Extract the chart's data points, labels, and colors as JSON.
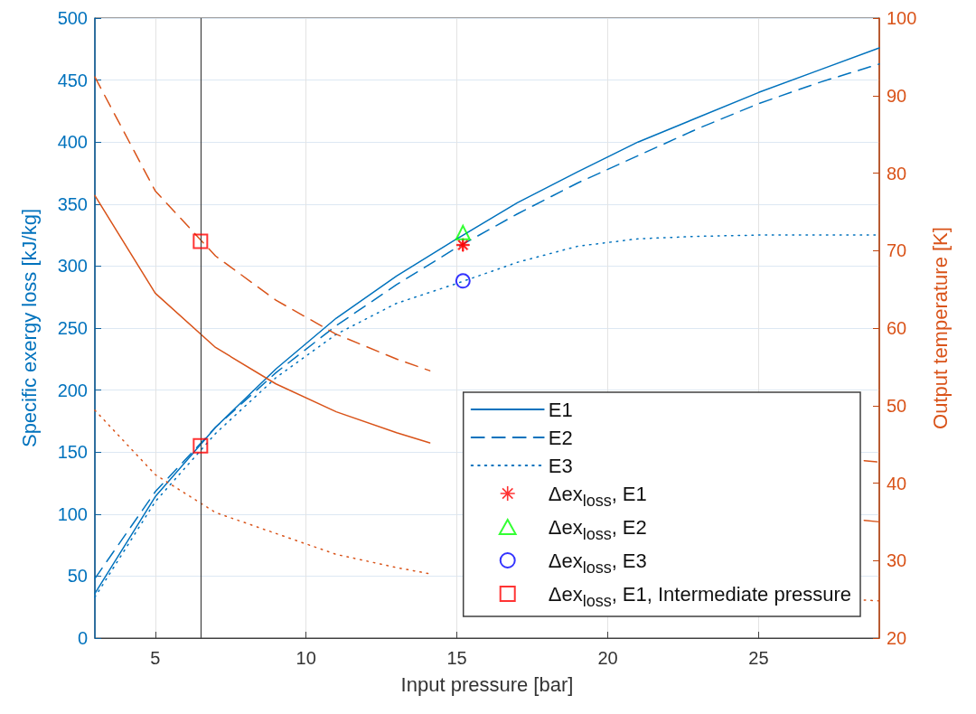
{
  "chart_data": {
    "type": "line",
    "xlabel": "Input pressure [bar]",
    "ylabel": "Specific exergy loss [kJ/kg]",
    "y2label": "Output temperature [K]",
    "x": [
      3,
      5,
      7,
      9,
      11,
      13,
      15,
      17,
      19,
      21,
      23,
      25,
      27,
      29
    ],
    "xlim": [
      3,
      29
    ],
    "xticks": [
      5,
      10,
      15,
      20,
      25
    ],
    "ylim": [
      0,
      500
    ],
    "yticks": [
      0,
      50,
      100,
      150,
      200,
      250,
      300,
      350,
      400,
      450,
      500
    ],
    "y2lim": [
      20,
      100
    ],
    "y2ticks": [
      20,
      30,
      40,
      50,
      60,
      70,
      80,
      90,
      100
    ],
    "grid": true,
    "legend": "bottom right",
    "marker": "none",
    "ref_lines": [
      {
        "axis": "x",
        "value": 6.5,
        "color": "#404040"
      }
    ],
    "series": [
      {
        "name": "E1",
        "color": "#0072bd",
        "line_style": "solid",
        "values": [
          36,
          114,
          170,
          217,
          258,
          292,
          322,
          351,
          376,
          400,
          420,
          440,
          458,
          476
        ]
      },
      {
        "name": "E2",
        "color": "#0072bd",
        "line_style": "dashed",
        "values": [
          48,
          118,
          170,
          214,
          252,
          285,
          315,
          342,
          367,
          389,
          411,
          431,
          448,
          463
        ]
      },
      {
        "name": "E3",
        "color": "#0072bd",
        "line_style": "dotted",
        "values": [
          33,
          110,
          165,
          210,
          245,
          270,
          286,
          303,
          316,
          322,
          324,
          325,
          325,
          325
        ]
      },
      {
        "color": "#d95319",
        "line_style": "solid",
        "axis": "y2",
        "x": [
          3,
          5,
          7,
          9,
          11,
          13,
          14.1,
          21,
          28.5,
          29
        ],
        "values": [
          77.1,
          64.5,
          57.5,
          52.8,
          49.2,
          46.5,
          45.2,
          null,
          35.2,
          35.0
        ]
      },
      {
        "color": "#d95319",
        "line_style": "dashed",
        "axis": "y2",
        "x": [
          3,
          5,
          7,
          9,
          11,
          13,
          14.1,
          21,
          28.5,
          29
        ],
        "values": [
          92.4,
          77.7,
          69.3,
          63.6,
          59.2,
          56.0,
          54.5,
          null,
          42.9,
          42.7
        ]
      },
      {
        "color": "#d95319",
        "line_style": "dotted",
        "axis": "y2",
        "x": [
          3,
          5,
          7,
          9,
          11,
          13,
          14.1,
          21,
          28.5,
          29
        ],
        "values": [
          49.4,
          41.1,
          36.2,
          33.5,
          30.8,
          29.1,
          28.3,
          null,
          24.9,
          24.8
        ]
      },
      {
        "name": "Δex$_{loss}$, E1",
        "type": "scatter",
        "marker": "star",
        "color": "#ff0000",
        "x": [
          15.2
        ],
        "values": [
          317
        ]
      },
      {
        "name": "Δex$_{loss}$, E2",
        "type": "scatter",
        "marker": "triangle",
        "color": "#00ff00",
        "x": [
          15.2
        ],
        "values": [
          327
        ]
      },
      {
        "name": "Δex$_{loss}$, E3",
        "type": "scatter",
        "marker": "circle",
        "color": "#0000ff",
        "x": [
          15.2
        ],
        "values": [
          288
        ]
      },
      {
        "name": "Δex$_{loss}$, E1, Intermediate pressure",
        "type": "scatter",
        "marker": "square",
        "color": "#ff0000",
        "x": [
          6.5,
          6.5
        ],
        "values": [
          155,
          320
        ]
      }
    ]
  }
}
